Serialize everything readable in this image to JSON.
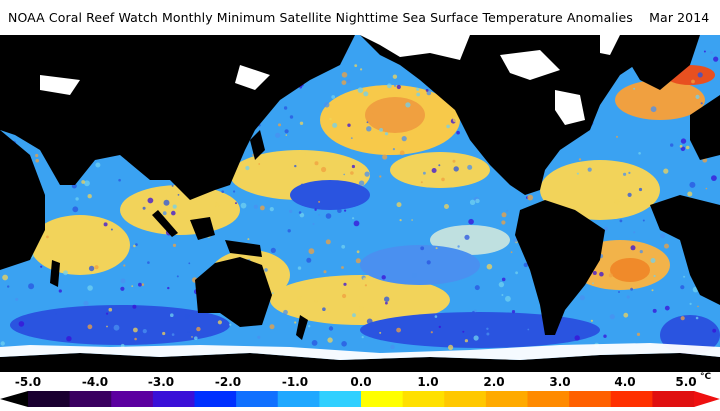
{
  "title": "NOAA Coral Reef Watch Monthly Minimum Satellite Nighttime Sea Surface Temperature Anomalies    Mar 2014",
  "colorbar": {
    "labels": [
      "-5.0",
      "-4.0",
      "-3.0",
      "-2.0",
      "-1.0",
      "0.0",
      "1.0",
      "2.0",
      "3.0",
      "4.0",
      "5.0"
    ],
    "unit": "°C",
    "colors": [
      "#1a0030",
      "#3a0060",
      "#5c00a0",
      "#3a10d8",
      "#0030ff",
      "#1070ff",
      "#20a8ff",
      "#30d0ff",
      "#ffff00",
      "#ffe000",
      "#ffc800",
      "#ffaa00",
      "#ff8a00",
      "#ff6000",
      "#ff3000",
      "#e01010"
    ]
  },
  "map_colors": {
    "land": "#000000",
    "ice": "#ffffff",
    "ocean_base": "#3aa2f2",
    "warm": "#f7c94a",
    "hot": "#f08a2a",
    "cold": "#2244dd",
    "near_zero": "#70d0f0"
  }
}
